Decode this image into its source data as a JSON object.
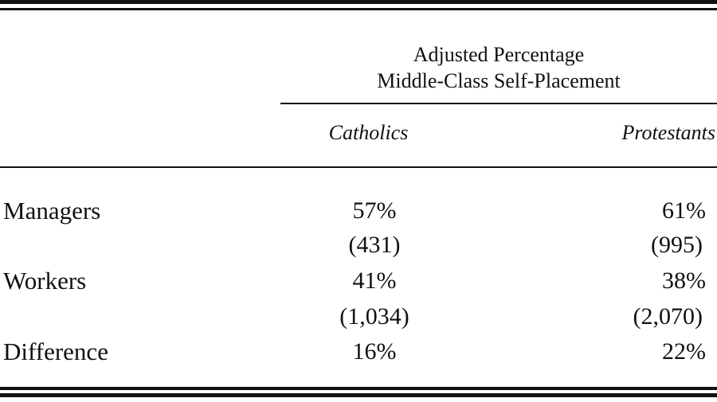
{
  "table": {
    "spanner_line1": "Adjusted Percentage",
    "spanner_line2": "Middle-Class Self-Placement",
    "columns": [
      "Catholics",
      "Protestants"
    ],
    "rows": [
      {
        "label": "Managers",
        "catholics": "57%",
        "protestants": "61%"
      },
      {
        "label": "",
        "catholics": "(431)",
        "protestants": "(995)"
      },
      {
        "label": "Workers",
        "catholics": "41%",
        "protestants": "38%"
      },
      {
        "label": "",
        "catholics": "(1,034)",
        "protestants": "(2,070)"
      },
      {
        "label": "Difference",
        "catholics": "16%",
        "protestants": "22%"
      }
    ]
  }
}
